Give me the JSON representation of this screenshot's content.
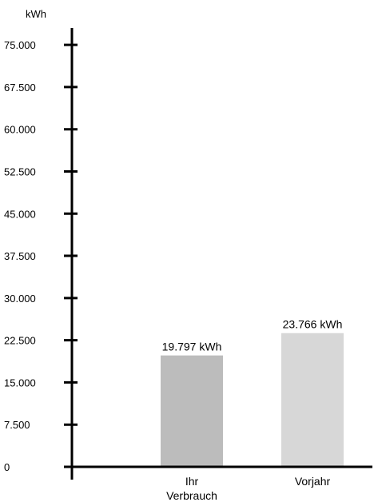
{
  "chart_data": {
    "type": "bar",
    "ylabel": "kWh",
    "ylim": [
      0,
      78000
    ],
    "yticks": [
      0,
      7500,
      15000,
      22500,
      30000,
      37500,
      45000,
      52500,
      60000,
      67500,
      75000
    ],
    "ytick_labels": [
      "0",
      "7.500",
      "15.000",
      "22.500",
      "30.000",
      "37.500",
      "45.000",
      "52.500",
      "60.000",
      "67.500",
      "75.000"
    ],
    "categories": [
      {
        "line1": "Ihr",
        "line2": "Verbrauch"
      },
      {
        "line1": "Vorjahr",
        "line2": ""
      }
    ],
    "values": [
      19797,
      23766
    ],
    "value_labels": [
      "19.797 kWh",
      "23.766 kWh"
    ],
    "colors": [
      "#bcbcbc",
      "#d7d7d7"
    ],
    "grid": false,
    "legend": "none"
  }
}
